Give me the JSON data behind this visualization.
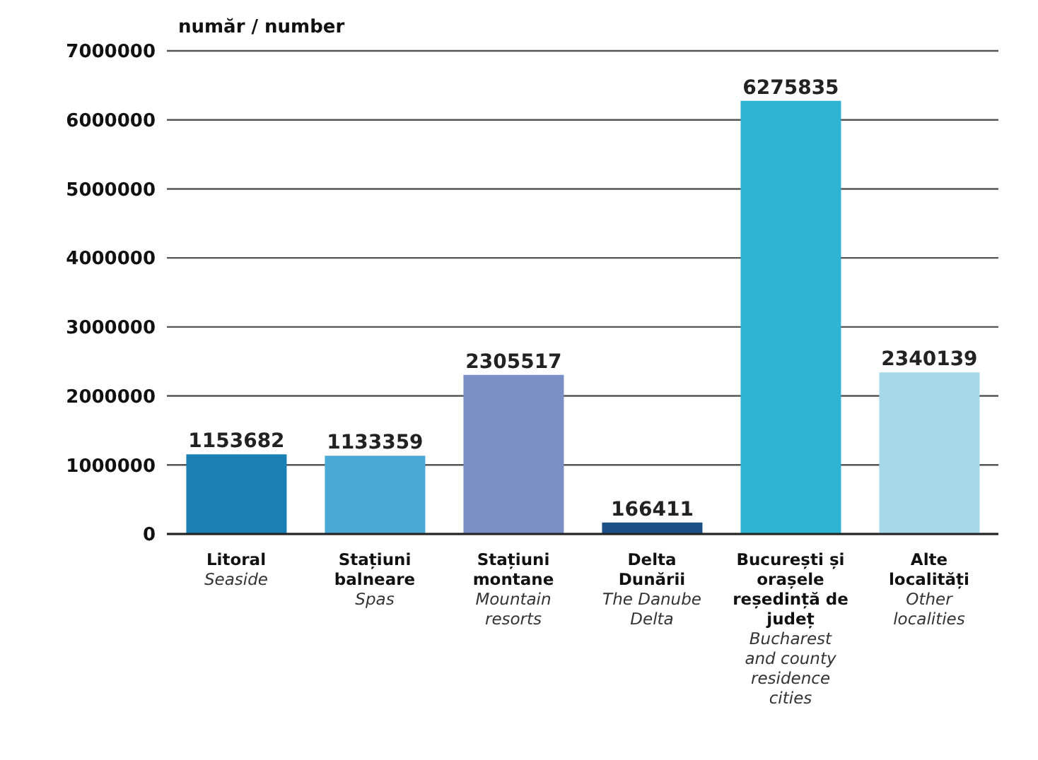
{
  "chart_data": {
    "type": "bar",
    "ylabel": "număr / number",
    "categories": [
      "Litoral\nSeaside",
      "Stațiuni balneare\nSpas",
      "Stațiuni montane\nMountain resorts",
      "Delta Dunării\nThe Danube Delta",
      "București și orașele reședință de județ\nBucharest and county residence cities",
      "Alte localități\nOther localities"
    ],
    "values": [
      1153682,
      1133359,
      2305517,
      166411,
      6275835,
      2340139
    ],
    "colors": [
      "#1a7fb5",
      "#4ba9d6",
      "#7a8fc4",
      "#1c4f86",
      "#2fb5d4",
      "#a6d8ea"
    ],
    "ylim": [
      0,
      7000000
    ],
    "yticks": [
      0,
      1000000,
      2000000,
      3000000,
      4000000,
      5000000,
      6000000,
      7000000
    ],
    "grid": "y",
    "data_labels": true
  }
}
